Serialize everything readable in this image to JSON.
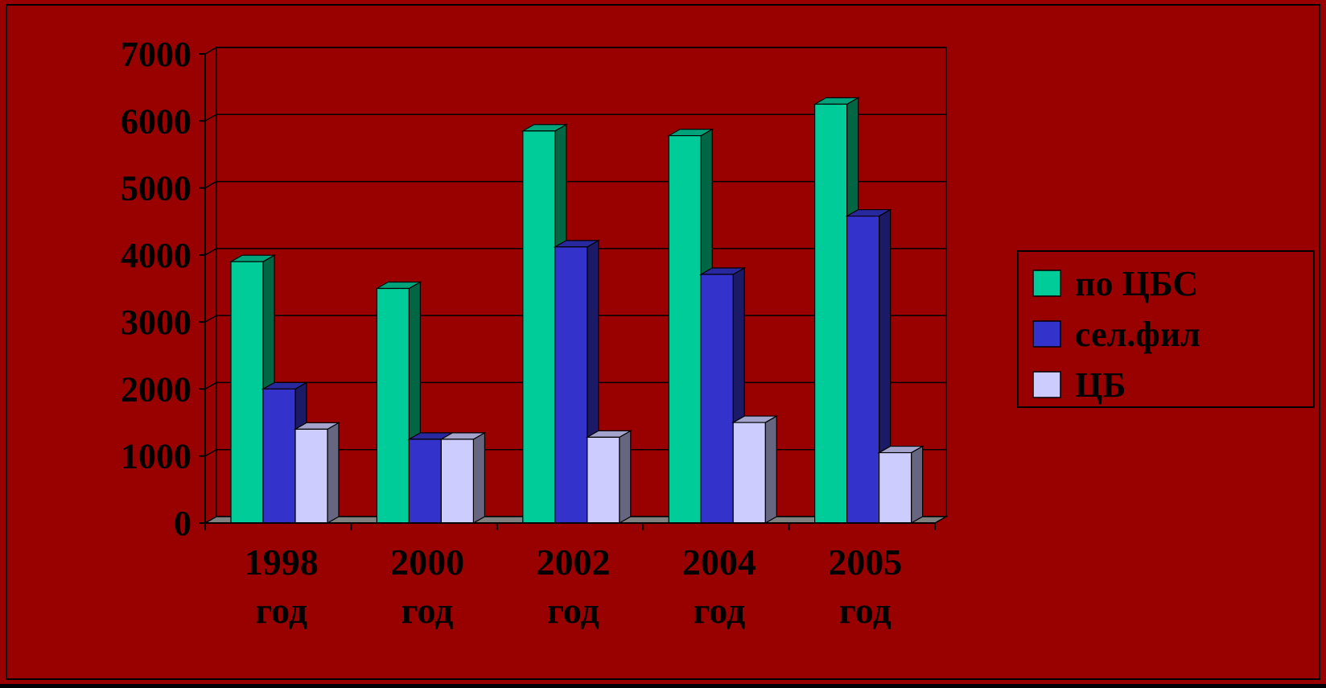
{
  "colors": {
    "background": "#990000",
    "frame": "#000000",
    "gridline": "#000000",
    "series_front": [
      "#00cc99",
      "#3333cc",
      "#ccccff"
    ],
    "series_side": [
      "#006644",
      "#1a1a66",
      "#666680"
    ],
    "series_top": [
      "#00a37a",
      "#29299f",
      "#a3a3cc"
    ]
  },
  "chart_data": {
    "type": "bar",
    "style": "3d-clustered-column",
    "title": "",
    "xlabel": "",
    "ylabel": "",
    "categories": [
      [
        "1998",
        "год"
      ],
      [
        "2000",
        "год"
      ],
      [
        "2002",
        "год"
      ],
      [
        "2004",
        "год"
      ],
      [
        "2005",
        "год"
      ]
    ],
    "series": [
      {
        "name": "по ЦБС",
        "values": [
          3900,
          3500,
          5850,
          5780,
          6250
        ]
      },
      {
        "name": "сел.фил",
        "values": [
          2000,
          1250,
          4120,
          3710,
          4580
        ]
      },
      {
        "name": "ЦБ",
        "values": [
          1400,
          1250,
          1280,
          1500,
          1050
        ]
      }
    ],
    "ylim": [
      0,
      7000
    ],
    "yticks": [
      "0",
      "1000",
      "2000",
      "3000",
      "4000",
      "5000",
      "6000",
      "7000"
    ],
    "grid": true,
    "legend_position": "right"
  }
}
